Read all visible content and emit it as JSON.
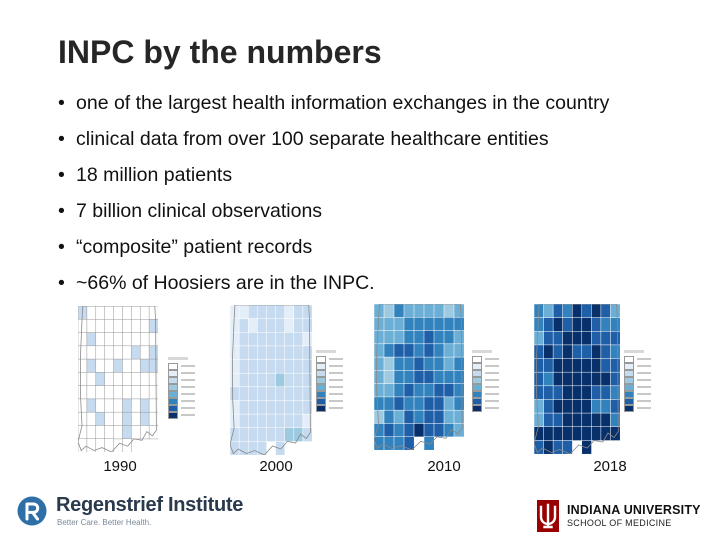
{
  "slide": {
    "title": "INPC by the numbers",
    "bullets": [
      "one of the largest health information exchanges in the country",
      "clinical data from over 100 separate healthcare entities",
      "18 million patients",
      "7 billion clinical observations",
      "“composite” patient records",
      "~66% of Hoosiers are in the INPC."
    ],
    "bullet_glyph": "•"
  },
  "maps": [
    {
      "year": "1990",
      "density": 0.05
    },
    {
      "year": "2000",
      "density": 0.25
    },
    {
      "year": "2010",
      "density": 0.65
    },
    {
      "year": "2018",
      "density": 0.85
    }
  ],
  "colors": {
    "scale": [
      "#ffffff",
      "#e3eef9",
      "#c6dbef",
      "#9ecae1",
      "#6baed6",
      "#3182bd",
      "#1f5fa8",
      "#08306b"
    ]
  },
  "logos": {
    "regenstrief_name": "Regenstrief Institute",
    "regenstrief_tagline": "Better Care. Better Health.",
    "iu_name": "INDIANA UNIVERSITY",
    "iu_school": "SCHOOL OF MEDICINE",
    "regenstrief_icon": "regenstrief-r-icon",
    "iu_icon": "iu-trident-icon"
  }
}
